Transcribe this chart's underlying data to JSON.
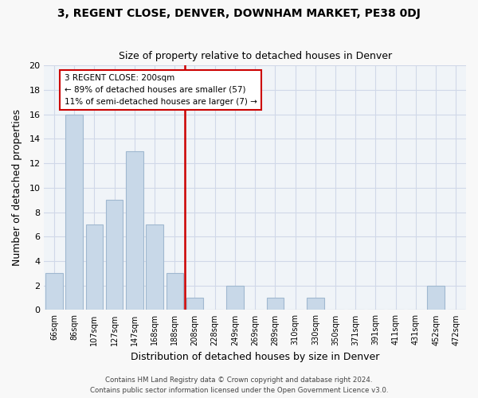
{
  "title_main": "3, REGENT CLOSE, DENVER, DOWNHAM MARKET, PE38 0DJ",
  "title_sub": "Size of property relative to detached houses in Denver",
  "xlabel": "Distribution of detached houses by size in Denver",
  "ylabel": "Number of detached properties",
  "categories": [
    "66sqm",
    "86sqm",
    "107sqm",
    "127sqm",
    "147sqm",
    "168sqm",
    "188sqm",
    "208sqm",
    "228sqm",
    "249sqm",
    "269sqm",
    "289sqm",
    "310sqm",
    "330sqm",
    "350sqm",
    "371sqm",
    "391sqm",
    "411sqm",
    "431sqm",
    "452sqm",
    "472sqm"
  ],
  "values": [
    3,
    16,
    7,
    9,
    13,
    7,
    3,
    1,
    0,
    2,
    0,
    1,
    0,
    1,
    0,
    0,
    0,
    0,
    0,
    2,
    0
  ],
  "bar_color": "#c8d8e8",
  "bar_edgecolor": "#a0b8d0",
  "vline_color": "#cc0000",
  "annotation_text": "3 REGENT CLOSE: 200sqm\n← 89% of detached houses are smaller (57)\n11% of semi-detached houses are larger (7) →",
  "annotation_box_edgecolor": "#cc0000",
  "ylim": [
    0,
    20
  ],
  "yticks": [
    0,
    2,
    4,
    6,
    8,
    10,
    12,
    14,
    16,
    18,
    20
  ],
  "grid_color": "#d0d8e8",
  "footer_text": "Contains HM Land Registry data © Crown copyright and database right 2024.\nContains public sector information licensed under the Open Government Licence v3.0.",
  "background_color": "#f0f4f8",
  "fig_background_color": "#f8f8f8"
}
